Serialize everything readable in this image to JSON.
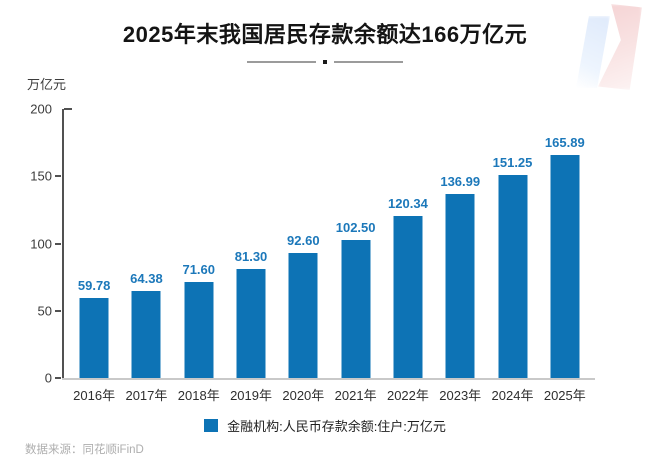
{
  "title": "2025年末我国居民存款余额达166万亿元",
  "unit_label": "万亿元",
  "legend": {
    "label": "金融机构:人民币存款余额:住户:万亿元"
  },
  "source_note": "数据来源：同花顺iFinD",
  "colors": {
    "bar": "#0d73b5",
    "value_label": "#1c78ba",
    "axis": "#515151",
    "baseline": "#c9c9c9",
    "watermark_blue": "#dfeafb",
    "watermark_pink": "#f5d3d4"
  },
  "chart_data": {
    "type": "bar",
    "title": "2025年末我国居民存款余额达166万亿元",
    "categories": [
      "2016年",
      "2017年",
      "2018年",
      "2019年",
      "2020年",
      "2021年",
      "2022年",
      "2023年",
      "2024年",
      "2025年"
    ],
    "values": [
      59.78,
      64.38,
      71.6,
      81.3,
      92.6,
      102.5,
      120.34,
      136.99,
      151.25,
      165.89
    ],
    "value_labels": [
      "59.78",
      "64.38",
      "71.60",
      "81.30",
      "92.60",
      "102.50",
      "120.34",
      "136.99",
      "151.25",
      "165.89"
    ],
    "xlabel": "",
    "ylabel": "万亿元",
    "ylim": [
      0,
      200
    ],
    "yticks": [
      200,
      150,
      100,
      50,
      0
    ],
    "grid": false,
    "legend_entries": [
      "金融机构:人民币存款余额:住户:万亿元"
    ],
    "legend_position": "bottom-center"
  }
}
